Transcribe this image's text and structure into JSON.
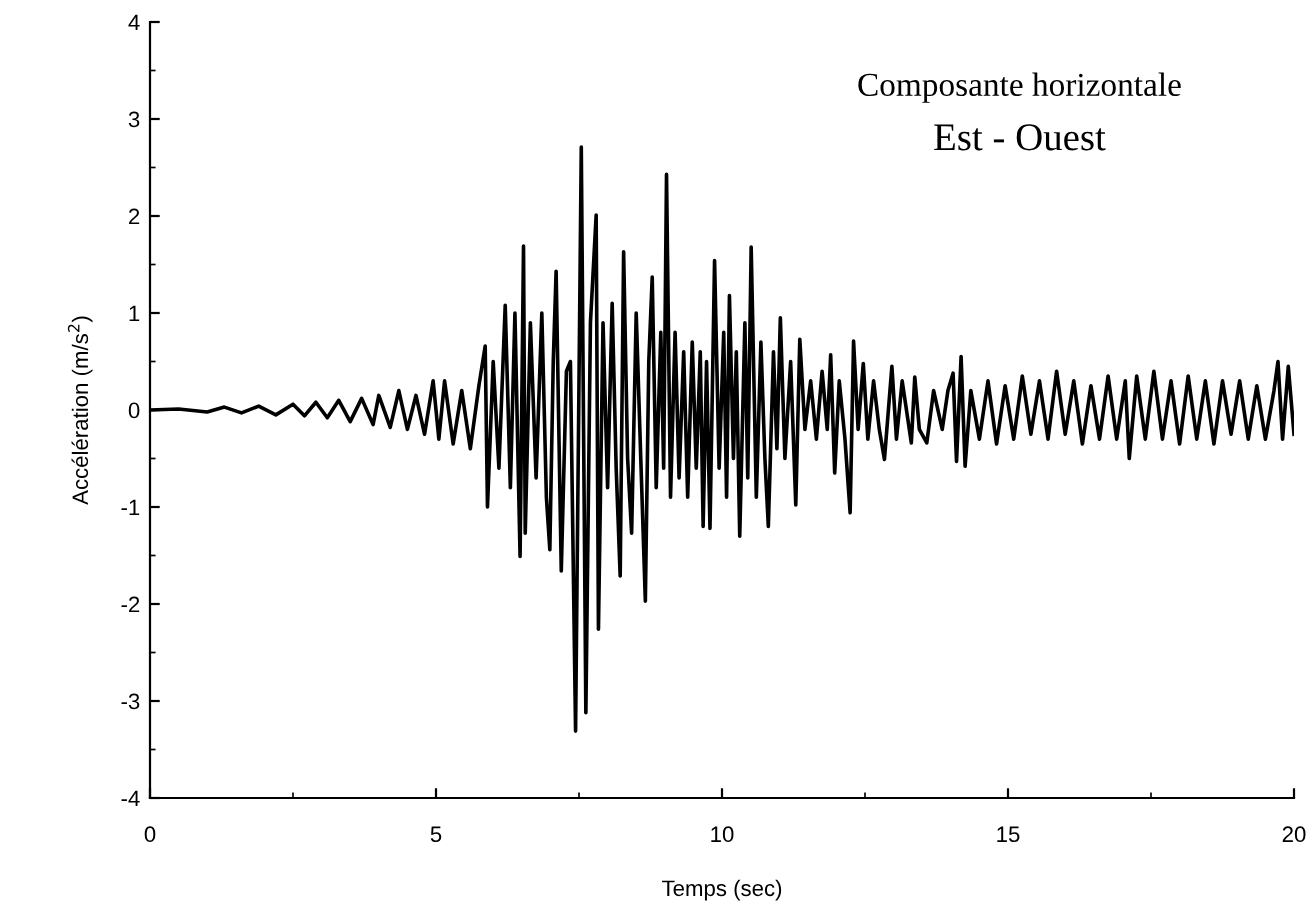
{
  "chart_data": {
    "type": "line",
    "title": "Composante horizontale",
    "subtitle": "Est - Ouest",
    "xlabel": "Temps (sec)",
    "ylabel": "Accélération (m/s$^{2}$)",
    "xlim": [
      0,
      20
    ],
    "ylim": [
      -4,
      4
    ],
    "xticks": [
      0,
      5,
      10,
      15,
      20
    ],
    "yticks": [
      -4,
      -3,
      -2,
      -1,
      0,
      1,
      2,
      3,
      4
    ],
    "grid": false,
    "legend": false,
    "marker": "none",
    "line_style": "solid",
    "series": [
      {
        "color": "#000000",
        "x": [
          0,
          0.5,
          1.0,
          1.3,
          1.6,
          1.9,
          2.2,
          2.5,
          2.7,
          2.9,
          3.1,
          3.3,
          3.5,
          3.7,
          3.9,
          4.0,
          4.2,
          4.35,
          4.5,
          4.65,
          4.8,
          4.95,
          5.05,
          5.15,
          5.3,
          5.45,
          5.6,
          5.75,
          5.86,
          5.9,
          6.0,
          6.1,
          6.21,
          6.3,
          6.38,
          6.47,
          6.53,
          6.56,
          6.65,
          6.75,
          6.85,
          6.93,
          6.99,
          7.05,
          7.1,
          7.19,
          7.28,
          7.35,
          7.44,
          7.54,
          7.62,
          7.7,
          7.8,
          7.84,
          7.92,
          8.0,
          8.08,
          8.15,
          8.22,
          8.28,
          8.35,
          8.42,
          8.5,
          8.58,
          8.66,
          8.72,
          8.78,
          8.85,
          8.93,
          8.98,
          9.03,
          9.1,
          9.18,
          9.25,
          9.33,
          9.4,
          9.48,
          9.55,
          9.62,
          9.67,
          9.73,
          9.79,
          9.87,
          9.95,
          10.03,
          10.08,
          10.13,
          10.2,
          10.25,
          10.31,
          10.4,
          10.45,
          10.51,
          10.6,
          10.68,
          10.75,
          10.81,
          10.9,
          10.96,
          11.02,
          11.1,
          11.2,
          11.29,
          11.36,
          11.45,
          11.55,
          11.65,
          11.75,
          11.84,
          11.9,
          11.97,
          12.05,
          12.15,
          12.24,
          12.3,
          12.38,
          12.47,
          12.55,
          12.65,
          12.75,
          12.84,
          12.97,
          13.05,
          13.15,
          13.25,
          13.31,
          13.37,
          13.45,
          13.58,
          13.7,
          13.85,
          13.95,
          14.04,
          14.1,
          14.18,
          14.25,
          14.35,
          14.5,
          14.65,
          14.8,
          14.95,
          15.1,
          15.25,
          15.4,
          15.55,
          15.7,
          15.85,
          16.0,
          16.15,
          16.3,
          16.45,
          16.6,
          16.75,
          16.9,
          17.05,
          17.12,
          17.25,
          17.4,
          17.55,
          17.7,
          17.85,
          18.0,
          18.15,
          18.3,
          18.45,
          18.6,
          18.75,
          18.9,
          19.05,
          19.2,
          19.35,
          19.5,
          19.65,
          19.72,
          19.8,
          19.9,
          20.0
        ],
        "values": [
          0,
          0.01,
          -0.02,
          0.03,
          -0.03,
          0.04,
          -0.05,
          0.06,
          -0.06,
          0.08,
          -0.08,
          0.1,
          -0.12,
          0.12,
          -0.15,
          0.15,
          -0.18,
          0.2,
          -0.2,
          0.15,
          -0.25,
          0.3,
          -0.3,
          0.3,
          -0.35,
          0.2,
          -0.4,
          0.25,
          0.66,
          -1.0,
          0.5,
          -0.6,
          1.08,
          -0.8,
          1.0,
          -1.51,
          1.69,
          -1.27,
          0.9,
          -0.7,
          1.0,
          -0.9,
          -1.44,
          0.5,
          1.43,
          -1.66,
          0.4,
          0.5,
          -3.31,
          2.71,
          -3.12,
          0.9,
          2.01,
          -2.26,
          0.9,
          -0.8,
          1.1,
          -0.6,
          -1.71,
          1.63,
          -0.5,
          -1.27,
          1.0,
          -0.5,
          -1.97,
          0.5,
          1.37,
          -0.8,
          0.8,
          -0.6,
          2.43,
          -0.9,
          0.8,
          -0.7,
          0.6,
          -0.9,
          0.7,
          -0.6,
          0.6,
          -1.2,
          0.5,
          -1.22,
          1.54,
          -0.6,
          0.8,
          -0.9,
          1.18,
          -0.5,
          0.6,
          -1.3,
          0.9,
          -0.7,
          1.68,
          -0.9,
          0.7,
          -0.5,
          -1.2,
          0.6,
          -0.4,
          0.95,
          -0.5,
          0.5,
          -0.98,
          0.73,
          -0.2,
          0.3,
          -0.3,
          0.4,
          -0.2,
          0.57,
          -0.65,
          0.3,
          -0.3,
          -1.06,
          0.71,
          -0.2,
          0.48,
          -0.3,
          0.3,
          -0.2,
          -0.51,
          0.45,
          -0.3,
          0.3,
          -0.1,
          -0.34,
          0.34,
          -0.2,
          -0.34,
          0.2,
          -0.2,
          0.2,
          0.38,
          -0.53,
          0.55,
          -0.58,
          0.2,
          -0.3,
          0.3,
          -0.35,
          0.25,
          -0.3,
          0.35,
          -0.25,
          0.3,
          -0.3,
          0.4,
          -0.25,
          0.3,
          -0.35,
          0.25,
          -0.3,
          0.35,
          -0.3,
          0.3,
          -0.5,
          0.35,
          -0.3,
          0.4,
          -0.3,
          0.3,
          -0.35,
          0.35,
          -0.3,
          0.3,
          -0.35,
          0.3,
          -0.25,
          0.3,
          -0.3,
          0.25,
          -0.3,
          0.2,
          0.5,
          -0.3,
          0.45,
          -0.25
        ]
      }
    ]
  }
}
